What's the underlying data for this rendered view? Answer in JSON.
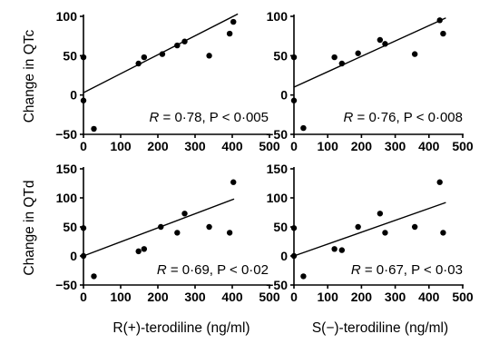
{
  "ylabels": [
    "Change in QTc",
    "Change in QTd"
  ],
  "xlabels": [
    "R(+)-terodiline (ng/ml)",
    "S(−)-terodiline (ng/ml)"
  ],
  "chart_data": [
    {
      "type": "scatter",
      "xlim": [
        0,
        500
      ],
      "ylim": [
        -50,
        100
      ],
      "xticks": [
        "0",
        "100",
        "200",
        "300",
        "400",
        "500"
      ],
      "yticks": [
        "−50",
        "0",
        "50",
        "100"
      ],
      "r_label": "R",
      "stat_text": " = 0·78, P < 0·005",
      "points": [
        [
          0,
          48
        ],
        [
          0,
          -7
        ],
        [
          28,
          -43
        ],
        [
          148,
          40
        ],
        [
          163,
          48
        ],
        [
          212,
          52
        ],
        [
          252,
          63
        ],
        [
          272,
          68
        ],
        [
          338,
          50
        ],
        [
          393,
          78
        ],
        [
          403,
          93
        ]
      ],
      "fit": [
        [
          0,
          3
        ],
        [
          415,
          103
        ]
      ]
    },
    {
      "type": "scatter",
      "xlim": [
        0,
        500
      ],
      "ylim": [
        -50,
        100
      ],
      "xticks": [
        "0",
        "100",
        "200",
        "300",
        "400",
        "500"
      ],
      "yticks": [
        "−50",
        "0",
        "50",
        "100"
      ],
      "r_label": "R",
      "stat_text": " = 0·76, P < 0·008",
      "points": [
        [
          0,
          48
        ],
        [
          0,
          -7
        ],
        [
          28,
          -42
        ],
        [
          120,
          48
        ],
        [
          142,
          40
        ],
        [
          190,
          53
        ],
        [
          255,
          70
        ],
        [
          270,
          65
        ],
        [
          358,
          52
        ],
        [
          432,
          95
        ],
        [
          442,
          78
        ]
      ],
      "fit": [
        [
          0,
          10
        ],
        [
          450,
          98
        ]
      ]
    },
    {
      "type": "scatter",
      "xlim": [
        0,
        500
      ],
      "ylim": [
        -50,
        150
      ],
      "xticks": [
        "0",
        "100",
        "200",
        "300",
        "400",
        "500"
      ],
      "yticks": [
        "−50",
        "0",
        "50",
        "100",
        "150"
      ],
      "r_label": "R",
      "stat_text": " = 0·69, P < 0·02",
      "points": [
        [
          0,
          48
        ],
        [
          0,
          0
        ],
        [
          28,
          -35
        ],
        [
          148,
          8
        ],
        [
          163,
          12
        ],
        [
          208,
          50
        ],
        [
          252,
          40
        ],
        [
          272,
          73
        ],
        [
          338,
          50
        ],
        [
          393,
          40
        ],
        [
          403,
          127
        ]
      ],
      "fit": [
        [
          0,
          0
        ],
        [
          405,
          98
        ]
      ]
    },
    {
      "type": "scatter",
      "xlim": [
        0,
        500
      ],
      "ylim": [
        -50,
        150
      ],
      "xticks": [
        "0",
        "100",
        "200",
        "300",
        "400",
        "500"
      ],
      "yticks": [
        "−50",
        "0",
        "50",
        "100",
        "150"
      ],
      "r_label": "R",
      "stat_text": " = 0·67, P < 0·03",
      "points": [
        [
          0,
          48
        ],
        [
          0,
          0
        ],
        [
          28,
          -35
        ],
        [
          120,
          12
        ],
        [
          142,
          10
        ],
        [
          190,
          50
        ],
        [
          255,
          73
        ],
        [
          270,
          40
        ],
        [
          358,
          50
        ],
        [
          432,
          127
        ],
        [
          442,
          40
        ]
      ],
      "fit": [
        [
          0,
          0
        ],
        [
          450,
          92
        ]
      ]
    }
  ]
}
